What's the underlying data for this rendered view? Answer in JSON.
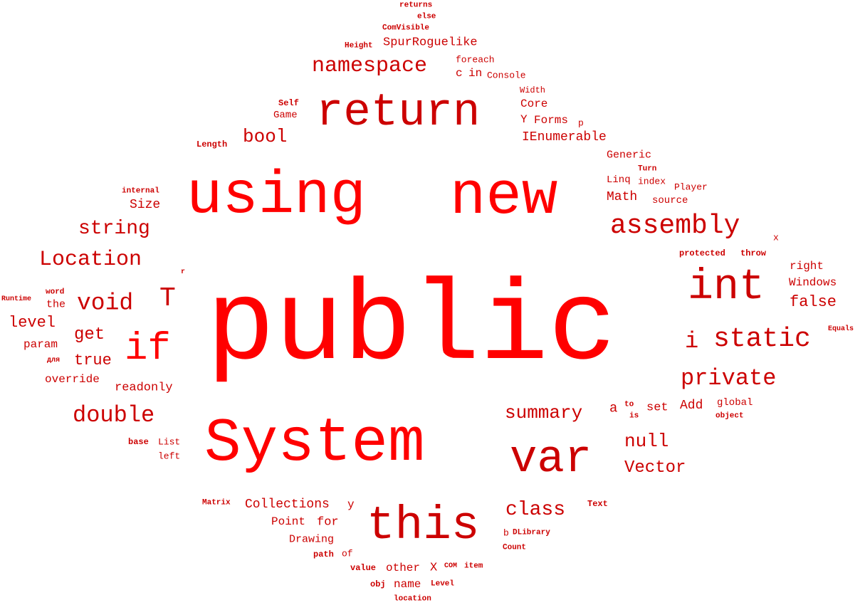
{
  "colors": {
    "primary": "#ff0000",
    "secondary": "#cc0000",
    "background": "#ffffff"
  },
  "words": [
    "public",
    "System",
    "using",
    "new",
    "return",
    "this",
    "var",
    "int",
    "if",
    "static",
    "assembly",
    "namespace",
    "Location",
    "void",
    "T",
    "string",
    "double",
    "private",
    "class",
    "summary",
    "bool",
    "null",
    "Vector",
    "i",
    "false",
    "get",
    "level",
    "true",
    "SpurRoguelike",
    "IEnumerable",
    "Collections",
    "Size",
    "Math",
    "override",
    "readonly",
    "param",
    "Core",
    "Forms",
    "Windows",
    "right",
    "the",
    "Add",
    "set",
    "Point",
    "for",
    "Drawing",
    "other",
    "X",
    "name",
    "a",
    "Generic",
    "Linq",
    "index",
    "source",
    "Player",
    "Turn",
    "global",
    "object",
    "to",
    "is",
    "List",
    "left",
    "base",
    "returns",
    "else",
    "ComVisible",
    "Height",
    "foreach",
    "c",
    "in",
    "Console",
    "Width",
    "Self",
    "Game",
    "Length",
    "Y",
    "p",
    "internal",
    "x",
    "protected",
    "throw",
    "r",
    "word",
    "Runtime",
    "Equals",
    "для",
    "Matrix",
    "y",
    "Text",
    "b",
    "DLibrary",
    "Count",
    "path",
    "of",
    "value",
    "COM",
    "item",
    "obj",
    "Level",
    "location"
  ]
}
